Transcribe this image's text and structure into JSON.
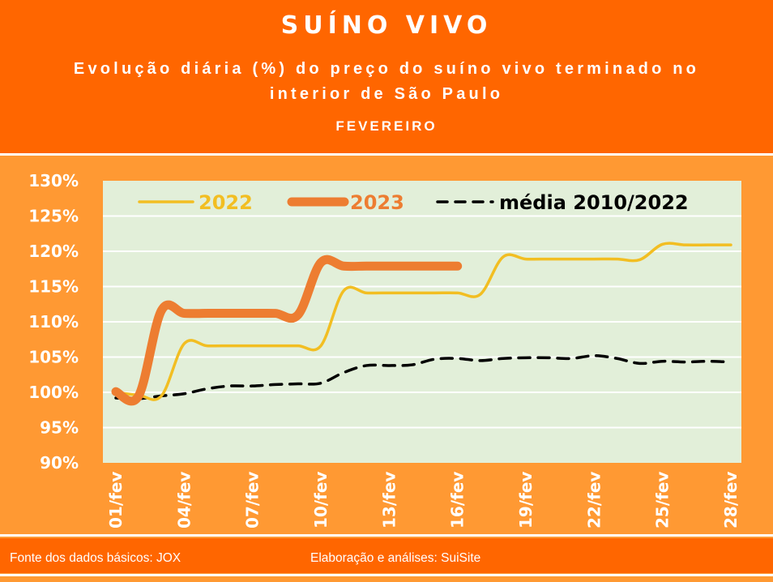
{
  "header": {
    "title": "SUÍNO VIVO",
    "subtitle": "Evolução diária (%) do preço do suíno vivo terminado no interior de São Paulo",
    "month": "FEVEREIRO"
  },
  "footer": {
    "source": "Fonte dos dados básicos: JOX",
    "credits": "Elaboração e análises: SuiSite"
  },
  "colors": {
    "header_bg": "#FF6600",
    "chart_bg": "#FF9933",
    "plot_bg": "#E2EFD9",
    "s2022": "#F2BE22",
    "s2023": "#ED7D31",
    "media": "#000000"
  },
  "chart_data": {
    "type": "line",
    "ylim": [
      90,
      130
    ],
    "yticks": [
      "90%",
      "95%",
      "100%",
      "105%",
      "110%",
      "115%",
      "120%",
      "125%",
      "130%"
    ],
    "ytick_values": [
      90,
      95,
      100,
      105,
      110,
      115,
      120,
      125,
      130
    ],
    "xtick_labels": [
      "01/fev",
      "04/fev",
      "07/fev",
      "10/fev",
      "13/fev",
      "16/fev",
      "19/fev",
      "22/fev",
      "25/fev",
      "28/fev"
    ],
    "xtick_days": [
      1,
      4,
      7,
      10,
      13,
      16,
      19,
      22,
      25,
      28
    ],
    "x_days": [
      1,
      2,
      3,
      4,
      5,
      6,
      7,
      8,
      9,
      10,
      11,
      12,
      13,
      14,
      15,
      16,
      17,
      18,
      19,
      20,
      21,
      22,
      23,
      24,
      25,
      26,
      27,
      28
    ],
    "grid": true,
    "legend": "top",
    "series": [
      {
        "name": "2022",
        "color": "#F2BE22",
        "style": "solid",
        "values": [
          100.0,
          99.6,
          99.5,
          106.9,
          106.6,
          106.6,
          106.6,
          106.6,
          106.6,
          106.6,
          114.4,
          114.1,
          114.1,
          114.1,
          114.1,
          114.1,
          113.9,
          119.2,
          118.9,
          118.9,
          118.9,
          118.9,
          118.9,
          118.8,
          121.0,
          120.9,
          120.9,
          120.9
        ]
      },
      {
        "name": "2023",
        "color": "#ED7D31",
        "style": "thick",
        "values": [
          100.1,
          99.5,
          111.6,
          111.2,
          111.2,
          111.2,
          111.2,
          111.2,
          111.0,
          118.4,
          117.9,
          117.9,
          117.9,
          117.9,
          117.9,
          117.9
        ]
      },
      {
        "name": "média 2010/2022",
        "color": "#000000",
        "style": "dashed",
        "values": [
          99.2,
          99.1,
          99.5,
          99.8,
          100.5,
          100.9,
          100.9,
          101.1,
          101.2,
          101.3,
          102.8,
          103.8,
          103.8,
          103.9,
          104.7,
          104.8,
          104.5,
          104.8,
          104.9,
          104.9,
          104.8,
          105.2,
          104.8,
          104.1,
          104.4,
          104.3,
          104.4,
          104.3
        ]
      }
    ]
  }
}
